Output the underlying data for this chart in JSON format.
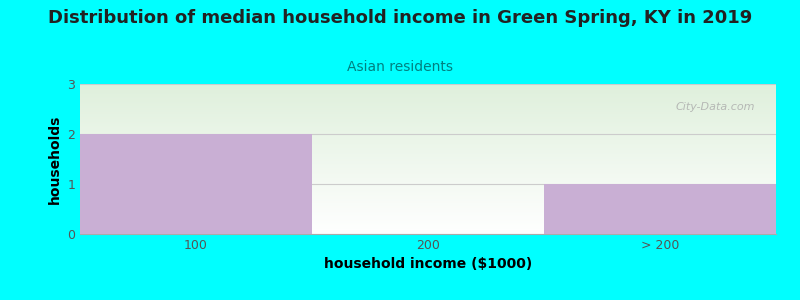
{
  "title": "Distribution of median household income in Green Spring, KY in 2019",
  "subtitle": "Asian residents",
  "xlabel": "household income ($1000)",
  "ylabel": "households",
  "categories": [
    "100",
    "200",
    "> 200"
  ],
  "values": [
    2,
    0,
    1
  ],
  "bar_color": "#c9afd4",
  "background_color": "#00ffff",
  "ylim": [
    0,
    3
  ],
  "yticks": [
    0,
    1,
    2,
    3
  ],
  "title_fontsize": 13,
  "subtitle_fontsize": 10,
  "subtitle_color": "#008080",
  "axis_label_fontsize": 10,
  "tick_label_fontsize": 9,
  "watermark": "City-Data.com"
}
